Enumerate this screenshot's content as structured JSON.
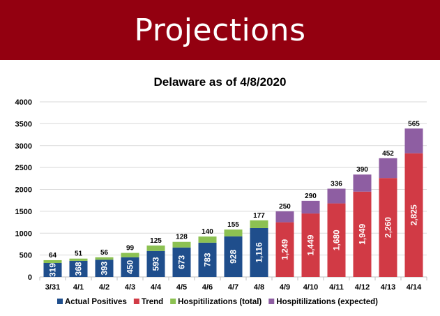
{
  "header": {
    "title": "Projections"
  },
  "chart_data": {
    "type": "bar",
    "stacked": true,
    "title": "Delaware as of 4/8/2020",
    "xlabel": "",
    "ylabel": "",
    "ylim": [
      0,
      4000
    ],
    "yticks": [
      0,
      500,
      1000,
      1500,
      2000,
      2500,
      3000,
      3500,
      4000
    ],
    "grid": true,
    "legend_position": "bottom",
    "categories": [
      "3/31",
      "4/1",
      "4/2",
      "4/3",
      "4/4",
      "4/5",
      "4/6",
      "4/7",
      "4/8",
      "4/9",
      "4/10",
      "4/11",
      "4/12",
      "4/13",
      "4/14"
    ],
    "series": [
      {
        "name": "Actual Positives",
        "color": "#1f4e8c",
        "values": [
          319,
          368,
          393,
          450,
          593,
          673,
          783,
          928,
          1116,
          null,
          null,
          null,
          null,
          null,
          null
        ],
        "labels": [
          "319",
          "368",
          "393",
          "450",
          "593",
          "673",
          "783",
          "928",
          "1,116",
          "",
          "",
          "",
          "",
          "",
          ""
        ]
      },
      {
        "name": "Trend",
        "color": "#d13a45",
        "values": [
          null,
          null,
          null,
          null,
          null,
          null,
          null,
          null,
          null,
          1249,
          1449,
          1680,
          1949,
          2260,
          2825
        ],
        "labels": [
          "",
          "",
          "",
          "",
          "",
          "",
          "",
          "",
          "",
          "1,249",
          "1,449",
          "1,680",
          "1,949",
          "2,260",
          "2,825"
        ]
      },
      {
        "name": "Hospitilizations (total)",
        "color": "#8cc152",
        "values": [
          64,
          51,
          56,
          99,
          125,
          128,
          140,
          155,
          177,
          null,
          null,
          null,
          null,
          null,
          null
        ],
        "labels": [
          "64",
          "51",
          "56",
          "99",
          "125",
          "128",
          "140",
          "155",
          "177",
          "",
          "",
          "",
          "",
          "",
          ""
        ]
      },
      {
        "name": "Hospitilizations (expected)",
        "color": "#8e5ea2",
        "values": [
          null,
          null,
          null,
          null,
          null,
          null,
          null,
          null,
          null,
          250,
          290,
          336,
          390,
          452,
          565
        ],
        "labels": [
          "",
          "",
          "",
          "",
          "",
          "",
          "",
          "",
          "",
          "250",
          "290",
          "336",
          "390",
          "452",
          "565"
        ]
      }
    ]
  }
}
